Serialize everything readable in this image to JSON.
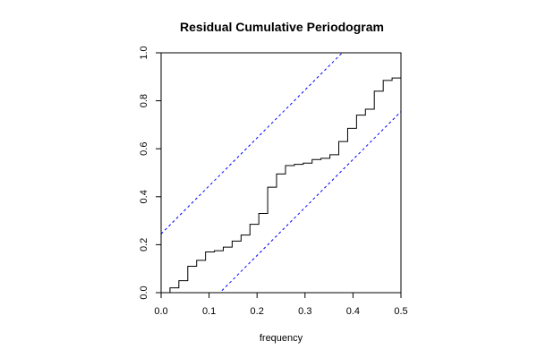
{
  "chart_data": {
    "type": "line",
    "title": "Residual Cumulative Periodogram",
    "xlabel": "frequency",
    "ylabel": "",
    "xlim": [
      0.0,
      0.5
    ],
    "ylim": [
      0.0,
      1.0
    ],
    "x_ticks": [
      0.0,
      0.1,
      0.2,
      0.3,
      0.4,
      0.5
    ],
    "x_tick_labels": [
      "0.0",
      "0.1",
      "0.2",
      "0.3",
      "0.4",
      "0.5"
    ],
    "y_ticks": [
      0.0,
      0.2,
      0.4,
      0.6,
      0.8,
      1.0
    ],
    "y_tick_labels": [
      "0.0",
      "0.2",
      "0.4",
      "0.6",
      "0.8",
      "1.0"
    ],
    "grid": false,
    "series": [
      {
        "style": "step",
        "color": "#000000",
        "x": [
          0.0,
          0.0185,
          0.037,
          0.0556,
          0.0741,
          0.0926,
          0.1111,
          0.1296,
          0.1481,
          0.1667,
          0.1852,
          0.2037,
          0.2222,
          0.2407,
          0.2593,
          0.2778,
          0.2963,
          0.3148,
          0.3333,
          0.3519,
          0.3704,
          0.3889,
          0.4074,
          0.4259,
          0.4444,
          0.463,
          0.4815,
          0.5
        ],
        "y": [
          0.0,
          0.02,
          0.05,
          0.11,
          0.135,
          0.17,
          0.175,
          0.19,
          0.215,
          0.24,
          0.285,
          0.33,
          0.44,
          0.495,
          0.53,
          0.535,
          0.54,
          0.555,
          0.56,
          0.575,
          0.63,
          0.685,
          0.74,
          0.765,
          0.84,
          0.885,
          0.895,
          0.935
        ]
      },
      {
        "style": "dashed",
        "color": "#0000ff",
        "x": [
          0.0,
          0.5
        ],
        "y": [
          0.245,
          1.245
        ]
      },
      {
        "style": "dashed",
        "color": "#0000ff",
        "x": [
          0.0,
          0.5
        ],
        "y": [
          -0.245,
          0.755
        ]
      }
    ]
  }
}
